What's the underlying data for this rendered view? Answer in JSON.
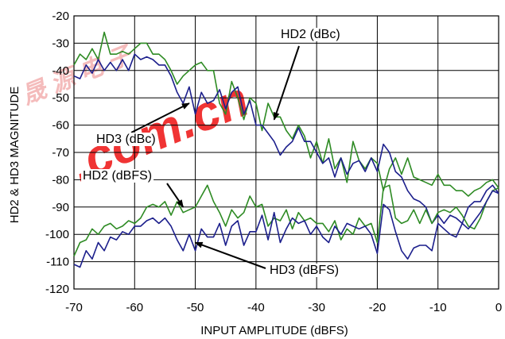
{
  "chart_data": {
    "type": "line",
    "title": "",
    "xlabel": "INPUT AMPLITUDE (dBFS)",
    "ylabel": "HD2 & HD3 MAGNITUDE",
    "xlim": [
      -70,
      0
    ],
    "ylim": [
      -120,
      -20
    ],
    "x_ticks": [
      -70,
      -60,
      -50,
      -40,
      -30,
      -20,
      -10,
      0
    ],
    "y_ticks": [
      -20,
      -30,
      -40,
      -50,
      -60,
      -70,
      -80,
      -90,
      -100,
      -110,
      -120
    ],
    "grid": true,
    "series": [
      {
        "name": "HD2 (dBc)",
        "color": "#2e8b24",
        "x": [
          -70,
          -69,
          -68,
          -67,
          -66,
          -65,
          -64,
          -63,
          -62,
          -61,
          -60,
          -59,
          -58,
          -57,
          -56,
          -55,
          -54,
          -53,
          -52,
          -51,
          -50,
          -49,
          -48,
          -47,
          -46,
          -45,
          -44,
          -43,
          -42,
          -41,
          -40,
          -39,
          -38,
          -37,
          -36,
          -35,
          -34,
          -33,
          -32,
          -31,
          -30,
          -29,
          -28,
          -27,
          -26,
          -25,
          -24,
          -23,
          -22,
          -21,
          -20,
          -19,
          -18,
          -17,
          -16,
          -15,
          -14,
          -13,
          -12,
          -11,
          -10,
          -9,
          -8,
          -7,
          -6,
          -5,
          -4,
          -3,
          -2,
          -1,
          0
        ],
        "y": [
          -38,
          -34,
          -36,
          -32,
          -36,
          -26,
          -34,
          -34,
          -33,
          -34,
          -32,
          -30,
          -30,
          -34,
          -34,
          -36,
          -40,
          -45,
          -42,
          -40,
          -38,
          -37,
          -40,
          -40,
          -52,
          -56,
          -44,
          -50,
          -58,
          -50,
          -52,
          -62,
          -52,
          -57,
          -57,
          -62,
          -65,
          -60,
          -64,
          -72,
          -66,
          -74,
          -65,
          -76,
          -72,
          -81,
          -66,
          -73,
          -76,
          -72,
          -74,
          -84,
          -76,
          -72,
          -78,
          -72,
          -79,
          -80,
          -81,
          -82,
          -78,
          -82,
          -82,
          -84,
          -84,
          -86,
          -84,
          -83,
          -81,
          -80,
          -83
        ]
      },
      {
        "name": "HD3 (dBc)",
        "color": "#1c1f8c",
        "x": [
          -70,
          -69,
          -68,
          -67,
          -66,
          -65,
          -64,
          -63,
          -62,
          -61,
          -60,
          -59,
          -58,
          -57,
          -56,
          -55,
          -54,
          -53,
          -52,
          -51,
          -50,
          -49,
          -48,
          -47,
          -46,
          -45,
          -44,
          -43,
          -42,
          -41,
          -40,
          -39,
          -38,
          -37,
          -36,
          -35,
          -34,
          -33,
          -32,
          -31,
          -30,
          -29,
          -28,
          -27,
          -26,
          -25,
          -24,
          -23,
          -22,
          -21,
          -20,
          -19,
          -18,
          -17,
          -16,
          -15,
          -14,
          -13,
          -12,
          -11,
          -10,
          -9,
          -8,
          -7,
          -6,
          -5,
          -4,
          -3,
          -2,
          -1,
          0
        ],
        "y": [
          -42,
          -43,
          -38,
          -41,
          -36,
          -40,
          -37,
          -40,
          -36,
          -40,
          -34,
          -36,
          -35,
          -36,
          -38,
          -38,
          -42,
          -48,
          -52,
          -46,
          -56,
          -48,
          -52,
          -51,
          -47,
          -54,
          -48,
          -46,
          -56,
          -51,
          -60,
          -60,
          -63,
          -66,
          -71,
          -68,
          -66,
          -61,
          -66,
          -66,
          -70,
          -74,
          -72,
          -79,
          -72,
          -78,
          -74,
          -73,
          -77,
          -72,
          -77,
          -67,
          -70,
          -77,
          -79,
          -84,
          -87,
          -88,
          -90,
          -96,
          -93,
          -96,
          -93,
          -94,
          -96,
          -90,
          -88,
          -88,
          -84,
          -82,
          -85
        ]
      },
      {
        "name": "HD2 (dBFS)",
        "color": "#2e8b24",
        "x": [
          -70,
          -69,
          -68,
          -67,
          -66,
          -65,
          -64,
          -63,
          -62,
          -61,
          -60,
          -59,
          -58,
          -57,
          -56,
          -55,
          -54,
          -53,
          -52,
          -51,
          -50,
          -49,
          -48,
          -47,
          -46,
          -45,
          -44,
          -43,
          -42,
          -41,
          -40,
          -39,
          -38,
          -37,
          -36,
          -35,
          -34,
          -33,
          -32,
          -31,
          -30,
          -29,
          -28,
          -27,
          -26,
          -25,
          -24,
          -23,
          -22,
          -21,
          -20,
          -19,
          -18,
          -17,
          -16,
          -15,
          -14,
          -13,
          -12,
          -11,
          -10,
          -9,
          -8,
          -7,
          -6,
          -5,
          -4,
          -3,
          -2,
          -1,
          0
        ],
        "y": [
          -108,
          -103,
          -102,
          -98,
          -100,
          -97,
          -96,
          -98,
          -97,
          -95,
          -96,
          -94,
          -90,
          -89,
          -90,
          -88,
          -93,
          -88,
          -92,
          -91,
          -90,
          -86,
          -82,
          -88,
          -92,
          -97,
          -91,
          -94,
          -92,
          -86,
          -90,
          -89,
          -97,
          -94,
          -95,
          -91,
          -98,
          -92,
          -95,
          -94,
          -96,
          -96,
          -99,
          -95,
          -102,
          -98,
          -100,
          -94,
          -97,
          -96,
          -103,
          -83,
          -82,
          -94,
          -96,
          -95,
          -91,
          -96,
          -91,
          -96,
          -92,
          -91,
          -92,
          -90,
          -93,
          -97,
          -98,
          -94,
          -88,
          -84,
          -83
        ]
      },
      {
        "name": "HD3 (dBFS)",
        "color": "#1c1f8c",
        "x": [
          -70,
          -69,
          -68,
          -67,
          -66,
          -65,
          -64,
          -63,
          -62,
          -61,
          -60,
          -59,
          -58,
          -57,
          -56,
          -55,
          -54,
          -53,
          -52,
          -51,
          -50,
          -49,
          -48,
          -47,
          -46,
          -45,
          -44,
          -43,
          -42,
          -41,
          -40,
          -39,
          -38,
          -37,
          -36,
          -35,
          -34,
          -33,
          -32,
          -31,
          -30,
          -29,
          -28,
          -27,
          -26,
          -25,
          -24,
          -23,
          -22,
          -21,
          -20,
          -19,
          -18,
          -17,
          -16,
          -15,
          -14,
          -13,
          -12,
          -11,
          -10,
          -9,
          -8,
          -7,
          -6,
          -5,
          -4,
          -3,
          -2,
          -1,
          0
        ],
        "y": [
          -111,
          -112,
          -106,
          -109,
          -103,
          -106,
          -101,
          -102,
          -99,
          -100,
          -97,
          -97,
          -95,
          -94,
          -96,
          -94,
          -97,
          -102,
          -106,
          -100,
          -106,
          -98,
          -101,
          -101,
          -96,
          -104,
          -97,
          -95,
          -104,
          -99,
          -99,
          -93,
          -102,
          -92,
          -103,
          -98,
          -94,
          -96,
          -95,
          -100,
          -97,
          -101,
          -103,
          -97,
          -100,
          -96,
          -97,
          -98,
          -97,
          -100,
          -107,
          -89,
          -91,
          -99,
          -106,
          -109,
          -105,
          -104,
          -104,
          -106,
          -96,
          -98,
          -100,
          -101,
          -96,
          -98,
          -95,
          -92,
          -88,
          -84,
          -85
        ]
      }
    ],
    "annotations": [
      {
        "text": "HD2 (dBc)",
        "target": [
          -37,
          -58
        ]
      },
      {
        "text": "HD3 (dBc)",
        "target": [
          -51,
          -52
        ]
      },
      {
        "text": "HD2 (dBFS)",
        "target": [
          -52,
          -90
        ]
      },
      {
        "text": "HD3 (dBFS)",
        "target": [
          -50,
          -103
        ]
      }
    ],
    "watermark": ".com.cn"
  }
}
